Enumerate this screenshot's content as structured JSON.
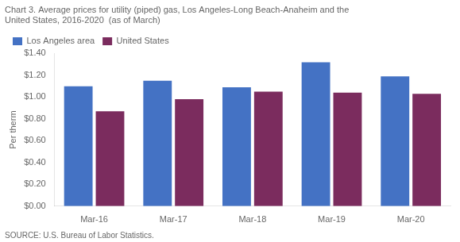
{
  "chart_data": {
    "type": "bar",
    "title": [
      "Chart 3. Average prices for utility (piped) gas, Los Angeles-Long Beach-Anaheim and the",
      "United States, 2016-2020  (as of March)"
    ],
    "source": "SOURCE: U.S. Bureau of Labor Statistics.",
    "y_label": "Per therm",
    "categories": [
      "Mar-16",
      "Mar-17",
      "Mar-18",
      "Mar-19",
      "Mar-20"
    ],
    "series": [
      {
        "name": "Los Angeles area",
        "color": "#4472C4",
        "values": [
          1.1,
          1.15,
          1.09,
          1.32,
          1.19
        ]
      },
      {
        "name": "United States",
        "color": "#7B2C5E",
        "values": [
          0.87,
          0.98,
          1.05,
          1.04,
          1.03
        ]
      }
    ],
    "ylim": [
      0,
      1.4
    ],
    "yticks": [
      {
        "value": 0.0,
        "label": "$0.00"
      },
      {
        "value": 0.2,
        "label": "$0.20"
      },
      {
        "value": 0.4,
        "label": "$0.40"
      },
      {
        "value": 0.6,
        "label": "$0.60"
      },
      {
        "value": 0.8,
        "label": "$0.80"
      },
      {
        "value": 1.0,
        "label": "$1.00"
      },
      {
        "value": 1.2,
        "label": "$1.20"
      },
      {
        "value": 1.4,
        "label": "$1.40"
      }
    ],
    "grid": false,
    "legend": "upper left"
  }
}
